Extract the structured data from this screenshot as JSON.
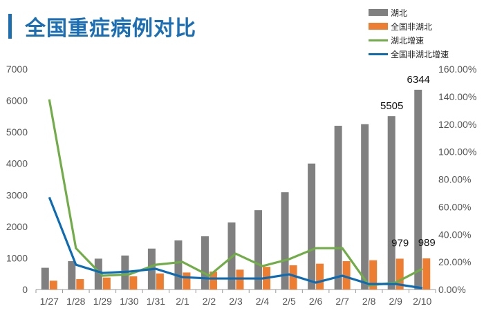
{
  "title": "全国重症病例对比",
  "colors": {
    "accent": "#1a6eb5",
    "bar_hubei": "#808080",
    "bar_non_hubei": "#ed7d31",
    "line_hubei": "#70ad47",
    "line_non_hubei": "#0b6bb5"
  },
  "chart_data": {
    "type": "bar",
    "categories": [
      "1/27",
      "1/28",
      "1/29",
      "1/30",
      "1/31",
      "2/1",
      "2/2",
      "2/3",
      "2/4",
      "2/5",
      "2/6",
      "2/7",
      "2/8",
      "2/9",
      "2/10"
    ],
    "series": [
      {
        "name": "湖北",
        "type": "bar",
        "axis": "left",
        "values": [
          690,
          900,
          980,
          1080,
          1300,
          1560,
          1690,
          2130,
          2520,
          3090,
          4000,
          5200,
          5250,
          5505,
          6344
        ]
      },
      {
        "name": "全国非湖北",
        "type": "bar",
        "axis": "left",
        "values": [
          280,
          330,
          380,
          420,
          510,
          540,
          570,
          630,
          720,
          770,
          820,
          900,
          930,
          979,
          989
        ]
      },
      {
        "name": "湖北增速",
        "type": "line",
        "axis": "right",
        "values": [
          138,
          30,
          10,
          11,
          18,
          20,
          10,
          26,
          17,
          22,
          30,
          30,
          3,
          5,
          15
        ]
      },
      {
        "name": "全国非湖北增速",
        "type": "line",
        "axis": "right",
        "values": [
          67,
          18,
          12,
          13,
          15,
          9,
          8,
          8,
          8,
          11,
          5,
          10,
          4,
          4,
          1
        ]
      }
    ],
    "data_labels": [
      {
        "series": "湖北",
        "category": "2/9",
        "text": "5505"
      },
      {
        "series": "湖北",
        "category": "2/10",
        "text": "6344"
      },
      {
        "series": "全国非湖北",
        "category": "2/9",
        "text": "979"
      },
      {
        "series": "全国非湖北",
        "category": "2/10",
        "text": "989"
      }
    ],
    "ylim_left": [
      0,
      7000
    ],
    "yticks_left": [
      "0",
      "1000",
      "2000",
      "3000",
      "4000",
      "5000",
      "6000",
      "7000"
    ],
    "ylim_right": [
      0,
      160
    ],
    "yticks_right": [
      "0.00%",
      "20.00%",
      "40.00%",
      "60.00%",
      "80.00%",
      "100.00%",
      "120.00%",
      "140.00%",
      "160.00%"
    ],
    "grid": false,
    "legend_position": "top-right"
  }
}
